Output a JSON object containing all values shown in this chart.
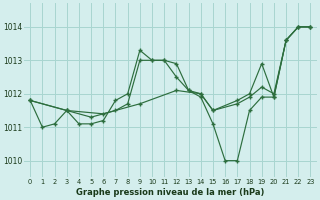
{
  "bg_color": "#d4eeed",
  "grid_color": "#a8d5d0",
  "line_color": "#2d6e3e",
  "title": "Graphe pression niveau de la mer (hPa)",
  "xlim": [
    -0.5,
    23.5
  ],
  "ylim": [
    1009.5,
    1014.7
  ],
  "yticks": [
    1010,
    1011,
    1012,
    1013,
    1014
  ],
  "xticks": [
    0,
    1,
    2,
    3,
    4,
    5,
    6,
    7,
    8,
    9,
    10,
    11,
    12,
    13,
    14,
    15,
    16,
    17,
    18,
    19,
    20,
    21,
    22,
    23
  ],
  "series1": [
    [
      0,
      1011.8
    ],
    [
      1,
      1011.0
    ],
    [
      2,
      1011.1
    ],
    [
      3,
      1011.5
    ],
    [
      4,
      1011.1
    ],
    [
      5,
      1011.1
    ],
    [
      6,
      1011.2
    ],
    [
      7,
      1011.8
    ],
    [
      8,
      1012.0
    ],
    [
      9,
      1013.3
    ],
    [
      10,
      1013.0
    ],
    [
      11,
      1013.0
    ],
    [
      12,
      1012.9
    ],
    [
      13,
      1012.1
    ],
    [
      14,
      1011.9
    ],
    [
      15,
      1011.1
    ],
    [
      16,
      1010.0
    ],
    [
      17,
      1010.0
    ],
    [
      18,
      1011.5
    ],
    [
      19,
      1011.9
    ],
    [
      20,
      1011.9
    ],
    [
      21,
      1013.6
    ],
    [
      22,
      1014.0
    ],
    [
      23,
      1014.0
    ]
  ],
  "series2": [
    [
      0,
      1011.8
    ],
    [
      3,
      1011.5
    ],
    [
      6,
      1011.4
    ],
    [
      9,
      1011.7
    ],
    [
      12,
      1012.1
    ],
    [
      14,
      1012.0
    ],
    [
      15,
      1011.5
    ],
    [
      17,
      1011.7
    ],
    [
      18,
      1011.9
    ],
    [
      19,
      1012.2
    ],
    [
      20,
      1012.0
    ],
    [
      21,
      1013.6
    ],
    [
      22,
      1014.0
    ],
    [
      23,
      1014.0
    ]
  ],
  "series3": [
    [
      0,
      1011.8
    ],
    [
      3,
      1011.5
    ],
    [
      5,
      1011.3
    ],
    [
      7,
      1011.5
    ],
    [
      8,
      1011.7
    ],
    [
      9,
      1013.0
    ],
    [
      10,
      1013.0
    ],
    [
      11,
      1013.0
    ],
    [
      12,
      1012.5
    ],
    [
      13,
      1012.1
    ],
    [
      14,
      1012.0
    ],
    [
      15,
      1011.5
    ],
    [
      17,
      1011.8
    ],
    [
      18,
      1012.0
    ],
    [
      19,
      1012.9
    ],
    [
      20,
      1011.9
    ],
    [
      21,
      1013.6
    ],
    [
      22,
      1014.0
    ],
    [
      23,
      1014.0
    ]
  ]
}
